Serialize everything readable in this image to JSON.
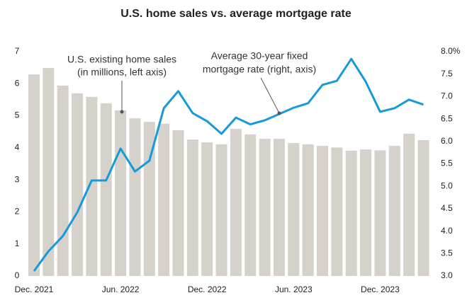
{
  "chart_data": {
    "type": "combo",
    "title": "U.S. home sales vs. average mortgage rate",
    "categories": [
      "Dec. 2021",
      null,
      null,
      null,
      null,
      null,
      "Jun. 2022",
      null,
      null,
      null,
      null,
      null,
      "Dec. 2022",
      null,
      null,
      null,
      null,
      null,
      "Jun. 2023",
      null,
      null,
      null,
      null,
      null,
      "Dec. 2023",
      null,
      null,
      null
    ],
    "series": [
      {
        "name": "U.S. existing home sales (in millions, left axis)",
        "type": "bar",
        "color": "#d6d1cb",
        "values": [
          6.29,
          6.49,
          5.94,
          5.7,
          5.59,
          5.39,
          5.17,
          4.92,
          4.81,
          4.75,
          4.55,
          4.26,
          4.17,
          4.11,
          4.59,
          4.42,
          4.28,
          4.28,
          4.15,
          4.11,
          4.06,
          4.01,
          3.91,
          3.95,
          3.92,
          4.06,
          4.44,
          4.24
        ]
      },
      {
        "name": "Average 30-year fixed mortgage rate (right, axis)",
        "type": "line",
        "axis": "y2",
        "color": "#169ad8",
        "values": [
          3.11,
          3.55,
          3.89,
          4.42,
          5.13,
          5.13,
          5.84,
          5.33,
          5.57,
          6.74,
          7.12,
          6.63,
          6.45,
          6.17,
          6.53,
          6.38,
          6.47,
          6.61,
          6.75,
          6.85,
          7.26,
          7.35,
          7.84,
          7.33,
          6.66,
          6.74,
          6.93,
          6.82
        ]
      }
    ],
    "annotations": [
      [
        "U.S. existing home sales",
        "(in millions, left axis)"
      ],
      [
        "Average 30-year fixed",
        "mortgage rate (right, axis)"
      ]
    ],
    "ylim": [
      0,
      7
    ],
    "yticks": [
      0,
      1,
      2,
      3,
      4,
      5,
      6,
      7
    ],
    "y2lim": [
      3,
      8
    ],
    "y2ticks": [
      {
        "value": 3,
        "label": "3.0"
      },
      {
        "value": 3.5,
        "label": "3.5"
      },
      {
        "value": 4,
        "label": "4.0"
      },
      {
        "value": 4.5,
        "label": "4.5"
      },
      {
        "value": 5,
        "label": "5.0"
      },
      {
        "value": 5.5,
        "label": "5.5"
      },
      {
        "value": 6,
        "label": "6.0"
      },
      {
        "value": 6.5,
        "label": "6.5"
      },
      {
        "value": 7,
        "label": "7.0"
      },
      {
        "value": 7.5,
        "label": "7.5"
      },
      {
        "value": 8,
        "label": "8.0%"
      }
    ],
    "grid": false
  }
}
